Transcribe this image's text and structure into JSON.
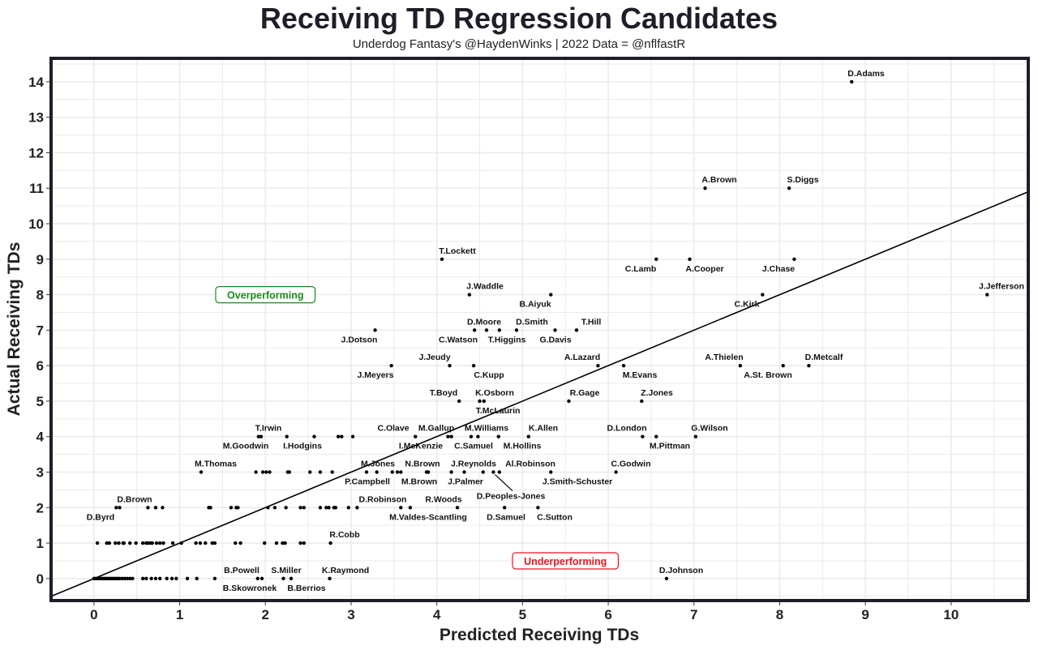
{
  "chart_data": {
    "type": "scatter",
    "title": "Receiving TD Regression Candidates",
    "subtitle": "Underdog Fantasy's @HaydenWinks | 2022 Data = @nflfastR",
    "xlabel": "Predicted Receiving TDs",
    "ylabel": "Actual Receiving TDs",
    "xlim": [
      -0.5,
      10.9
    ],
    "ylim": [
      -0.62,
      14.66
    ],
    "xticks": [
      "0",
      "1",
      "2",
      "3",
      "4",
      "5",
      "6",
      "7",
      "8",
      "9",
      "10"
    ],
    "yticks": [
      "0",
      "1",
      "2",
      "3",
      "4",
      "5",
      "6",
      "7",
      "8",
      "9",
      "10",
      "11",
      "12",
      "13",
      "14"
    ],
    "grid": true,
    "reference_line": {
      "label": "y = x",
      "slope": 1,
      "intercept": 0
    },
    "annotations": [
      {
        "text": "Overperforming",
        "x": 2.0,
        "y": 8,
        "color": "#1a8a1a"
      },
      {
        "text": "Underperforming",
        "x": 5.5,
        "y": 0.5,
        "color": "#e8141e"
      }
    ],
    "labeled_points": [
      {
        "name": "D.Adams",
        "x": 8.84,
        "y": 14,
        "pos": "above"
      },
      {
        "name": "A.Brown",
        "x": 7.13,
        "y": 11,
        "pos": "above"
      },
      {
        "name": "S.Diggs",
        "x": 8.11,
        "y": 11,
        "pos": "above"
      },
      {
        "name": "T.Lockett",
        "x": 4.06,
        "y": 9,
        "pos": "above"
      },
      {
        "name": "C.Lamb",
        "x": 6.56,
        "y": 9,
        "pos": "below"
      },
      {
        "name": "A.Cooper",
        "x": 6.95,
        "y": 9,
        "pos": "below"
      },
      {
        "name": "J.Chase",
        "x": 8.17,
        "y": 9,
        "pos": "below"
      },
      {
        "name": "J.Waddle",
        "x": 4.38,
        "y": 8,
        "pos": "above"
      },
      {
        "name": "B.Aiyuk",
        "x": 5.33,
        "y": 8,
        "pos": "below"
      },
      {
        "name": "C.Kirk",
        "x": 7.8,
        "y": 8,
        "pos": "below"
      },
      {
        "name": "J.Jefferson",
        "x": 10.42,
        "y": 8,
        "pos": "above"
      },
      {
        "name": "J.Dotson",
        "x": 3.28,
        "y": 7,
        "pos": "below"
      },
      {
        "name": "D.Moore",
        "x": 4.44,
        "y": 7,
        "pos": "above"
      },
      {
        "name": "C.Watson",
        "x": 4.58,
        "y": 7,
        "pos": "below"
      },
      {
        "name": "T.Higgins",
        "x": 4.73,
        "y": 7,
        "pos": "below"
      },
      {
        "name": "D.Smith",
        "x": 4.93,
        "y": 7,
        "pos": "above"
      },
      {
        "name": "G.Davis",
        "x": 5.38,
        "y": 7,
        "pos": "below"
      },
      {
        "name": "T.Hill",
        "x": 5.63,
        "y": 7,
        "pos": "above"
      },
      {
        "name": "J.Meyers",
        "x": 3.47,
        "y": 6,
        "pos": "below"
      },
      {
        "name": "J.Jeudy",
        "x": 4.15,
        "y": 6,
        "pos": "above"
      },
      {
        "name": "C.Kupp",
        "x": 4.43,
        "y": 6,
        "pos": "below"
      },
      {
        "name": "A.Lazard",
        "x": 5.88,
        "y": 6,
        "pos": "above"
      },
      {
        "name": "M.Evans",
        "x": 6.18,
        "y": 6,
        "pos": "below"
      },
      {
        "name": "A.Thielen",
        "x": 7.54,
        "y": 6,
        "pos": "above"
      },
      {
        "name": "A.St. Brown",
        "x": 8.04,
        "y": 6,
        "pos": "below"
      },
      {
        "name": "D.Metcalf",
        "x": 8.34,
        "y": 6,
        "pos": "above"
      },
      {
        "name": "T.Boyd",
        "x": 4.26,
        "y": 5,
        "pos": "above"
      },
      {
        "name": "K.Osborn",
        "x": 4.5,
        "y": 5,
        "pos": "above"
      },
      {
        "name": "T.McLaurin",
        "x": 4.55,
        "y": 5,
        "pos": "below"
      },
      {
        "name": "R.Gage",
        "x": 5.54,
        "y": 5,
        "pos": "above"
      },
      {
        "name": "Z.Jones",
        "x": 6.39,
        "y": 5,
        "pos": "above"
      },
      {
        "name": "T.Irwin",
        "x": 1.95,
        "y": 4,
        "pos": "above"
      },
      {
        "name": "M.Goodwin",
        "x": 1.92,
        "y": 4,
        "pos": "below"
      },
      {
        "name": "I.Hodgins",
        "x": 2.25,
        "y": 4,
        "pos": "below"
      },
      {
        "name": "C.Olave",
        "x": 3.75,
        "y": 4,
        "pos": "above"
      },
      {
        "name": "I.McKenzie",
        "x": 4.13,
        "y": 4,
        "pos": "below"
      },
      {
        "name": "M.Gallup",
        "x": 4.17,
        "y": 4,
        "pos": "above"
      },
      {
        "name": "C.Samuel",
        "x": 4.4,
        "y": 4,
        "pos": "below"
      },
      {
        "name": "M.Williams",
        "x": 4.48,
        "y": 4,
        "pos": "above"
      },
      {
        "name": "M.Hollins",
        "x": 4.72,
        "y": 4,
        "pos": "below"
      },
      {
        "name": "K.Allen",
        "x": 5.07,
        "y": 4,
        "pos": "above"
      },
      {
        "name": "D.London",
        "x": 6.4,
        "y": 4,
        "pos": "above"
      },
      {
        "name": "M.Pittman",
        "x": 6.56,
        "y": 4,
        "pos": "below"
      },
      {
        "name": "G.Wilson",
        "x": 7.02,
        "y": 4,
        "pos": "above"
      },
      {
        "name": "M.Thomas",
        "x": 1.25,
        "y": 3,
        "pos": "above"
      },
      {
        "name": "P.Campbell",
        "x": 3.18,
        "y": 3,
        "pos": "below"
      },
      {
        "name": "M.Jones",
        "x": 3.3,
        "y": 3,
        "pos": "above"
      },
      {
        "name": "M.Brown",
        "x": 3.88,
        "y": 3,
        "pos": "below"
      },
      {
        "name": "N.Brown",
        "x": 3.9,
        "y": 3,
        "pos": "above"
      },
      {
        "name": "J.Palmer",
        "x": 4.17,
        "y": 3,
        "pos": "below"
      },
      {
        "name": "J.Reynolds",
        "x": 4.32,
        "y": 3,
        "pos": "above"
      },
      {
        "name": "D.Peoples-Jones",
        "x": 4.66,
        "y": 3,
        "pos": "below-far"
      },
      {
        "name": "Al.Robinson",
        "x": 4.73,
        "y": 3,
        "pos": "above-right"
      },
      {
        "name": "J.Smith-Schuster",
        "x": 5.33,
        "y": 3,
        "pos": "below"
      },
      {
        "name": "C.Godwin",
        "x": 6.09,
        "y": 3,
        "pos": "above"
      },
      {
        "name": "D.Byrd",
        "x": 0.26,
        "y": 2,
        "pos": "below"
      },
      {
        "name": "D.Brown",
        "x": 0.3,
        "y": 2,
        "pos": "above"
      },
      {
        "name": "D.Robinson",
        "x": 3.58,
        "y": 2,
        "pos": "above"
      },
      {
        "name": "M.Valdes-Scantling",
        "x": 3.69,
        "y": 2,
        "pos": "below"
      },
      {
        "name": "R.Woods",
        "x": 4.24,
        "y": 2,
        "pos": "above"
      },
      {
        "name": "D.Samuel",
        "x": 4.79,
        "y": 2,
        "pos": "below"
      },
      {
        "name": "C.Sutton",
        "x": 5.18,
        "y": 2,
        "pos": "below"
      },
      {
        "name": "R.Cobb",
        "x": 2.76,
        "y": 1,
        "pos": "above"
      },
      {
        "name": "B.Powell",
        "x": 1.91,
        "y": 0,
        "pos": "above"
      },
      {
        "name": "B.Skowronek",
        "x": 1.96,
        "y": 0,
        "pos": "below"
      },
      {
        "name": "S.Miller",
        "x": 2.21,
        "y": 0,
        "pos": "above"
      },
      {
        "name": "B.Berrios",
        "x": 2.3,
        "y": 0,
        "pos": "below"
      },
      {
        "name": "K.Raymond",
        "x": 2.75,
        "y": 0,
        "pos": "above"
      },
      {
        "name": "D.Johnson",
        "x": 6.68,
        "y": 0,
        "pos": "above"
      }
    ],
    "unlabeled_points": {
      "4": [
        2.57,
        2.85,
        2.89,
        3.02
      ],
      "3": [
        1.89,
        1.97,
        2.01,
        2.05,
        2.26,
        2.28,
        2.52,
        2.64,
        2.78,
        3.48,
        3.54,
        3.58,
        4.54
      ],
      "2": [
        0.63,
        0.72,
        0.8,
        1.34,
        1.36,
        1.6,
        1.66,
        1.68,
        2.03,
        2.11,
        2.24,
        2.41,
        2.45,
        2.64,
        2.71,
        2.74,
        2.8,
        2.82,
        2.97,
        3.07
      ],
      "1": [
        0.04,
        0.15,
        0.18,
        0.25,
        0.29,
        0.34,
        0.35,
        0.42,
        0.49,
        0.57,
        0.61,
        0.63,
        0.66,
        0.68,
        0.73,
        0.77,
        0.81,
        0.92,
        1.02,
        1.19,
        1.24,
        1.3,
        1.38,
        1.41,
        1.65,
        1.71,
        1.99,
        2.13,
        2.2,
        2.23,
        2.41,
        2.45
      ],
      "0": [
        0.0,
        0.02,
        0.04,
        0.06,
        0.08,
        0.1,
        0.12,
        0.14,
        0.16,
        0.18,
        0.2,
        0.22,
        0.24,
        0.26,
        0.28,
        0.3,
        0.33,
        0.36,
        0.39,
        0.42,
        0.45,
        0.57,
        0.61,
        0.67,
        0.72,
        0.77,
        0.85,
        0.91,
        0.96,
        1.09,
        1.2,
        1.41
      ]
    }
  }
}
